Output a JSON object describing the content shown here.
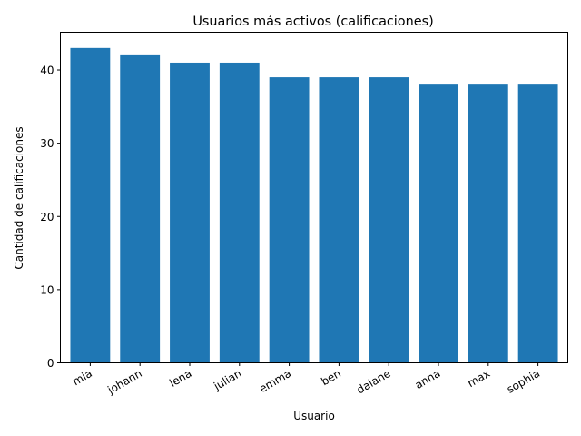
{
  "chart_data": {
    "type": "bar",
    "title": "Usuarios más activos (calificaciones)",
    "xlabel": "Usuario",
    "ylabel": "Cantidad de calificaciones",
    "categories": [
      "mia",
      "johann",
      "lena",
      "julian",
      "emma",
      "ben",
      "daiane",
      "anna",
      "max",
      "sophia"
    ],
    "values": [
      43,
      42,
      41,
      41,
      39,
      39,
      39,
      38,
      38,
      38
    ],
    "yticks": [
      0,
      10,
      20,
      30,
      40
    ],
    "ylim": [
      0,
      45.15
    ],
    "bar_color": "#1f77b4",
    "grid": false,
    "legend": "none"
  }
}
